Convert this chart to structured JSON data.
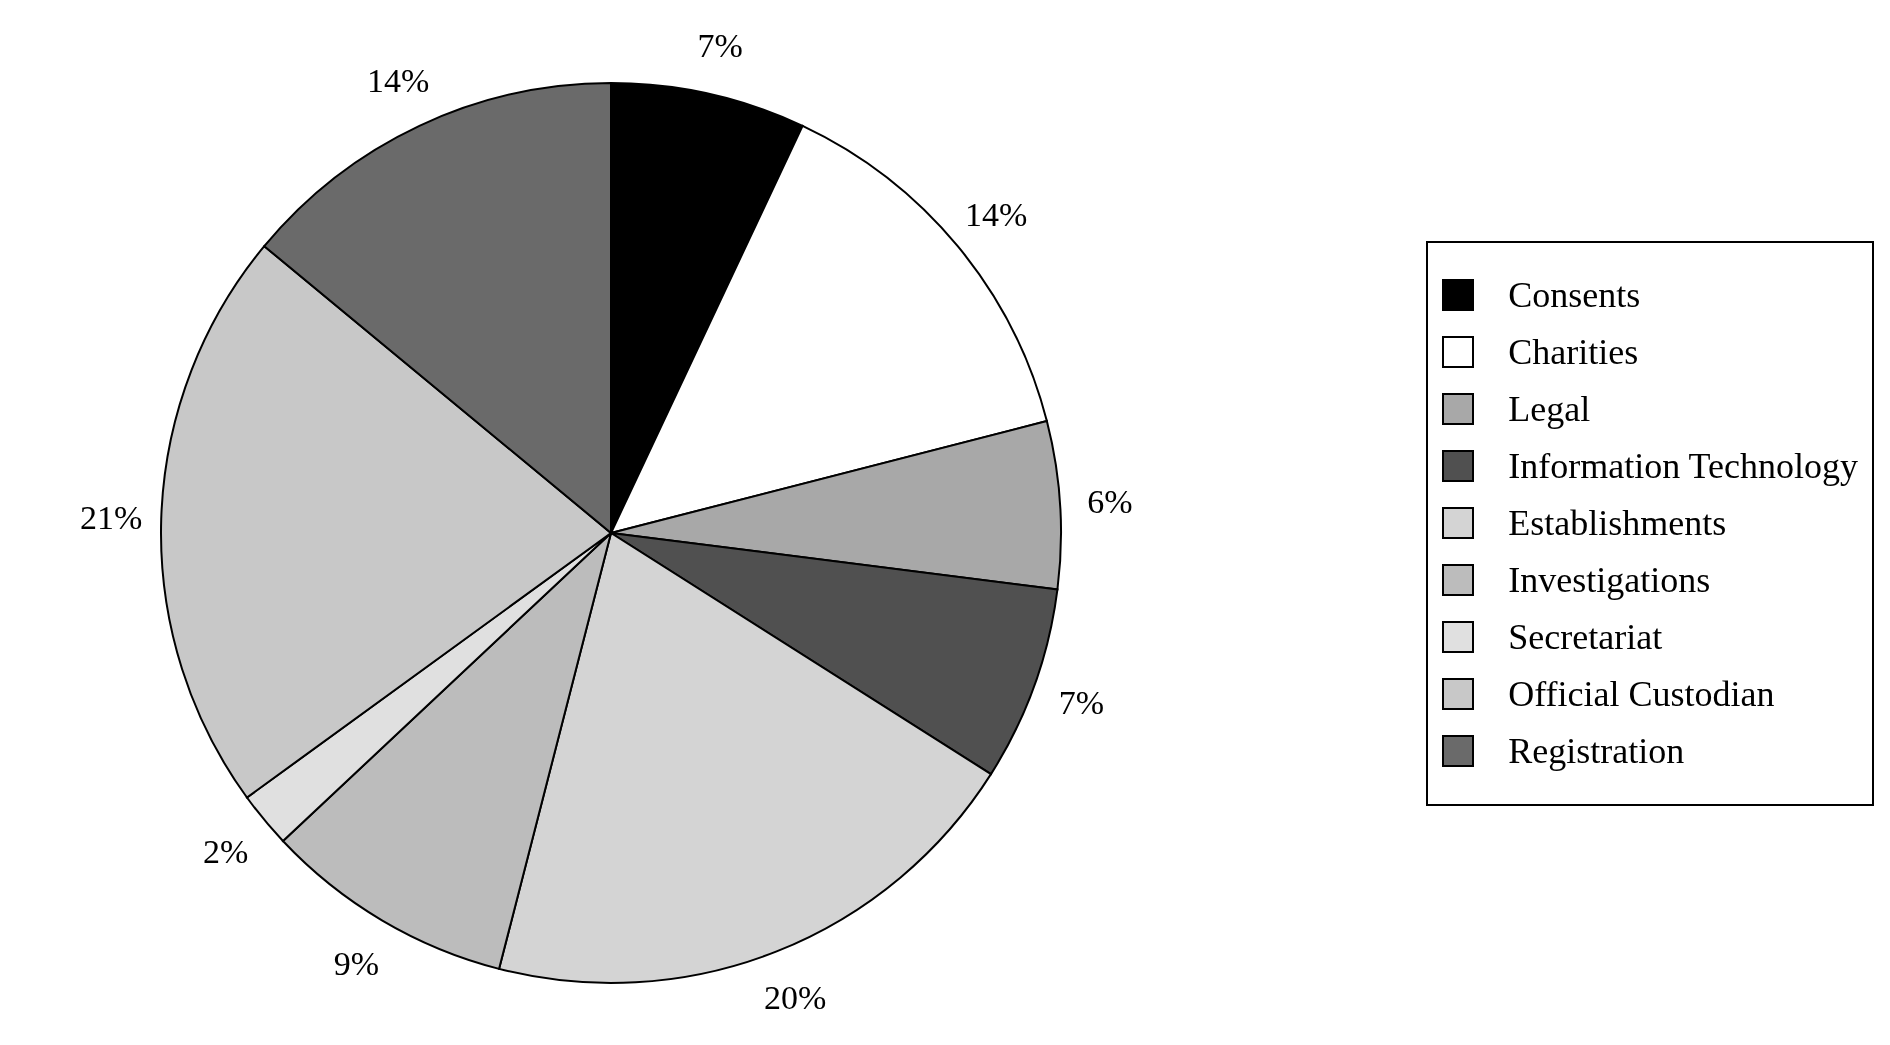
{
  "chart_data": {
    "type": "pie",
    "categories": [
      "Consents",
      "Charities",
      "Legal",
      "Information Technology",
      "Establishments",
      "Investigations",
      "Secretariat",
      "Official Custodian",
      "Registration"
    ],
    "values": [
      7,
      14,
      6,
      7,
      20,
      9,
      2,
      21,
      14
    ],
    "value_labels": [
      "7%",
      "14%",
      "6%",
      "7%",
      "20%",
      "9%",
      "2%",
      "21%",
      "14%"
    ],
    "colors": [
      "#000000",
      "#ffffff",
      "#a8a8a8",
      "#505050",
      "#d4d4d4",
      "#bcbcbc",
      "#e0e0e0",
      "#c8c8c8",
      "#6a6a6a"
    ],
    "legend": "right"
  }
}
